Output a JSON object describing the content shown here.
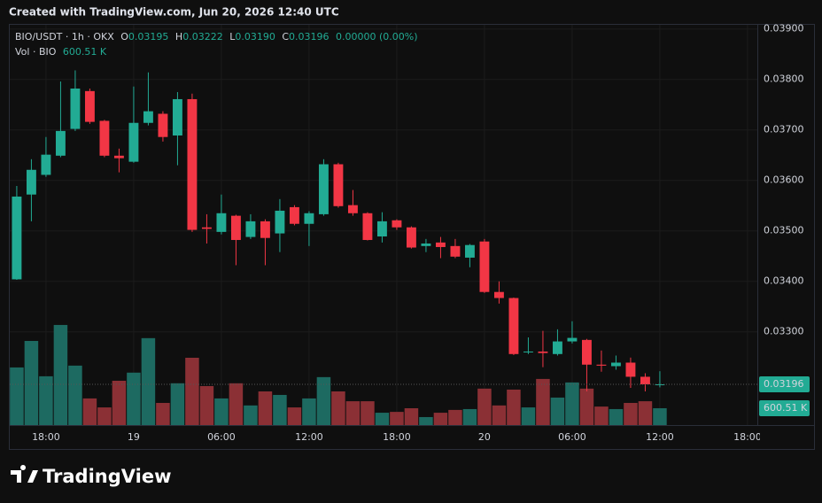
{
  "header": "Created with TradingView.com, Jun 20, 2026 12:40 UTC",
  "footer": "TradingView",
  "legend": {
    "o_label": "O",
    "open": "0.03195",
    "h_label": "H",
    "high": "0.03222",
    "l_label": "L",
    "low": "0.03190",
    "c_label": "C",
    "close": "0.03196",
    "change": "0.00000 (0.00%)",
    "vol_title": "Vol · BIO",
    "vol_value": "600.51 K"
  },
  "chart_data": {
    "type": "candlestick",
    "title": "BIO/USDT · 1h · OKX",
    "up_color": "#22ab94",
    "down_color": "#f23645",
    "volume_up_color": "#1d6a61",
    "volume_down_color": "#8b3035",
    "open": [
      0.03404,
      0.03572,
      0.03611,
      0.03649,
      0.03702,
      0.03777,
      0.03718,
      0.03649,
      0.03637,
      0.03714,
      0.03732,
      0.03689,
      0.03761,
      0.03507,
      0.03498,
      0.0353,
      0.03488,
      0.03519,
      0.03495,
      0.03547,
      0.03514,
      0.03533,
      0.03632,
      0.03551,
      0.03535,
      0.03489,
      0.03521,
      0.03507,
      0.0347,
      0.03477,
      0.0347,
      0.03447,
      0.03479,
      0.03379,
      0.03367,
      0.0326,
      0.03261,
      0.03256,
      0.03281,
      0.03284,
      0.03235,
      0.03232,
      0.03239,
      0.03211,
      0.03195
    ],
    "high": [
      0.03589,
      0.03642,
      0.03686,
      0.03796,
      0.03818,
      0.03782,
      0.0372,
      0.03663,
      0.03786,
      0.03814,
      0.03737,
      0.03775,
      0.03772,
      0.03533,
      0.03572,
      0.03532,
      0.03533,
      0.03523,
      0.03563,
      0.03551,
      0.03539,
      0.03642,
      0.03635,
      0.03581,
      0.03537,
      0.03537,
      0.03523,
      0.03509,
      0.03484,
      0.03488,
      0.03484,
      0.03474,
      0.03484,
      0.034,
      0.03368,
      0.03289,
      0.03302,
      0.03305,
      0.03321,
      0.03286,
      0.03263,
      0.03253,
      0.03249,
      0.03218,
      0.03222
    ],
    "low": [
      0.03403,
      0.03519,
      0.03607,
      0.03646,
      0.03698,
      0.03712,
      0.03646,
      0.03616,
      0.03635,
      0.03709,
      0.03677,
      0.0363,
      0.03498,
      0.03475,
      0.03493,
      0.03432,
      0.03484,
      0.03432,
      0.03458,
      0.03511,
      0.0347,
      0.0353,
      0.03546,
      0.0353,
      0.03481,
      0.03477,
      0.03502,
      0.03465,
      0.03458,
      0.03446,
      0.03446,
      0.03428,
      0.03377,
      0.03356,
      0.03254,
      0.03256,
      0.0323,
      0.03253,
      0.03277,
      0.03182,
      0.03221,
      0.03225,
      0.03189,
      0.03182,
      0.0319
    ],
    "close": [
      0.03568,
      0.03621,
      0.03651,
      0.03698,
      0.03782,
      0.03716,
      0.03649,
      0.03644,
      0.03714,
      0.03737,
      0.03686,
      0.03761,
      0.03502,
      0.03504,
      0.03535,
      0.03482,
      0.03519,
      0.03486,
      0.0354,
      0.03514,
      0.03535,
      0.03632,
      0.03549,
      0.03535,
      0.03482,
      0.03519,
      0.03507,
      0.03467,
      0.03475,
      0.03468,
      0.03449,
      0.03472,
      0.03379,
      0.03367,
      0.03256,
      0.03261,
      0.03258,
      0.03281,
      0.03288,
      0.03235,
      0.03233,
      0.03239,
      0.03211,
      0.03196,
      0.03196
    ],
    "volume": [
      2055,
      3000,
      1740,
      3570,
      2120,
      950,
      630,
      1580,
      1870,
      3100,
      790,
      1490,
      2400,
      1390,
      950,
      1490,
      700,
      1200,
      1075,
      630,
      950,
      1710,
      1200,
      850,
      850,
      440,
      470,
      600,
      285,
      440,
      540,
      570,
      1300,
      700,
      1265,
      630,
      1645,
      980,
      1520,
      1300,
      660,
      570,
      790,
      850,
      600.51
    ],
    "last_price_label": "0.03196",
    "ylim": [
      0.039083,
      0.031153
    ],
    "yticks": [
      {
        "value": 0.039,
        "label": "0.03900"
      },
      {
        "value": 0.038,
        "label": "0.03800"
      },
      {
        "value": 0.037,
        "label": "0.03700"
      },
      {
        "value": 0.036,
        "label": "0.03600"
      },
      {
        "value": 0.035,
        "label": "0.03500"
      },
      {
        "value": 0.034,
        "label": "0.03400"
      },
      {
        "value": 0.033,
        "label": "0.03300"
      }
    ],
    "volume_ylim": [
      0,
      6000
    ],
    "xlim": [
      -0.48,
      50.67
    ],
    "xticks": [
      {
        "value": 2,
        "label": "18:00"
      },
      {
        "value": 8,
        "label": "19"
      },
      {
        "value": 14,
        "label": "06:00"
      },
      {
        "value": 20,
        "label": "12:00"
      },
      {
        "value": 26,
        "label": "18:00"
      },
      {
        "value": 32,
        "label": "20"
      },
      {
        "value": 38,
        "label": "06:00"
      },
      {
        "value": 44,
        "label": "12:00"
      },
      {
        "value": 50,
        "label": "18:00"
      }
    ],
    "grid": true
  }
}
